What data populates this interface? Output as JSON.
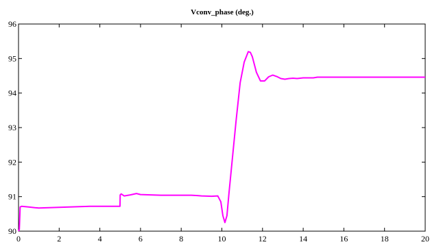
{
  "chart_data": {
    "type": "line",
    "title": "Vconv_phase (deg.)",
    "xlabel": "",
    "ylabel": "",
    "xlim": [
      0,
      20
    ],
    "ylim": [
      90,
      96
    ],
    "xticks": [
      0,
      2,
      4,
      6,
      8,
      10,
      12,
      14,
      16,
      18,
      20
    ],
    "yticks": [
      90,
      91,
      92,
      93,
      94,
      95,
      96
    ],
    "grid": false,
    "line_color": "#ff00ff",
    "series": [
      {
        "x": [
          0,
          0.04,
          0.08,
          0.15,
          0.5,
          0.8,
          1.0,
          1.5,
          2.0,
          2.5,
          3.0,
          3.5,
          4.0,
          4.5,
          4.99,
          5.0,
          5.05,
          5.2,
          5.5,
          5.8,
          6.0,
          6.5,
          7.0,
          7.5,
          8.0,
          8.5,
          8.8,
          9.0,
          9.5,
          9.8,
          9.95,
          10.05,
          10.15,
          10.25,
          10.35,
          10.5,
          10.7,
          10.9,
          11.1,
          11.3,
          11.4,
          11.5,
          11.7,
          11.9,
          12.1,
          12.3,
          12.5,
          12.7,
          12.9,
          13.1,
          13.3,
          13.5,
          13.7,
          14.0,
          14.5,
          14.7,
          15.0,
          16.0,
          17.0,
          18.0,
          19.0,
          20.0
        ],
        "y": [
          90.0,
          90.05,
          90.7,
          90.72,
          90.7,
          90.68,
          90.67,
          90.68,
          90.69,
          90.7,
          90.71,
          90.72,
          90.72,
          90.72,
          90.72,
          91.05,
          91.08,
          91.02,
          91.05,
          91.09,
          91.06,
          91.05,
          91.04,
          91.04,
          91.04,
          91.04,
          91.03,
          91.02,
          91.01,
          91.02,
          90.85,
          90.45,
          90.25,
          90.45,
          91.1,
          92.0,
          93.2,
          94.3,
          94.9,
          95.2,
          95.18,
          95.05,
          94.6,
          94.35,
          94.35,
          94.47,
          94.52,
          94.48,
          94.42,
          94.4,
          94.42,
          94.43,
          94.42,
          94.44,
          94.44,
          94.46,
          94.46,
          94.46,
          94.46,
          94.46,
          94.46,
          94.46
        ]
      }
    ]
  }
}
